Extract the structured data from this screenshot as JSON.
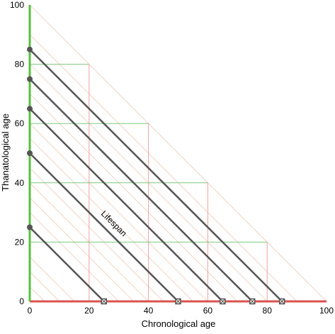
{
  "chart_data": {
    "type": "line",
    "title": "",
    "xlabel": "Chronological age",
    "ylabel": "Thanatological age",
    "xlim": [
      0,
      100
    ],
    "ylim": [
      0,
      100
    ],
    "x_ticks": [
      "0",
      "20",
      "40",
      "60",
      "80",
      "100"
    ],
    "y_ticks": [
      "0",
      "20",
      "40",
      "60",
      "80",
      "100"
    ],
    "grid": false,
    "annotation": "Lifespan",
    "lifespans": [
      25,
      50,
      65,
      75,
      85
    ],
    "series": [
      {
        "points": [
          {
            "x": 0,
            "y": 25
          },
          {
            "x": 25,
            "y": 0
          }
        ]
      },
      {
        "points": [
          {
            "x": 0,
            "y": 50
          },
          {
            "x": 50,
            "y": 0
          }
        ]
      },
      {
        "points": [
          {
            "x": 0,
            "y": 65
          },
          {
            "x": 65,
            "y": 0
          }
        ]
      },
      {
        "points": [
          {
            "x": 0,
            "y": 75
          },
          {
            "x": 75,
            "y": 0
          }
        ]
      },
      {
        "points": [
          {
            "x": 0,
            "y": 85
          },
          {
            "x": 85,
            "y": 0
          }
        ]
      }
    ],
    "reference_points": [
      {
        "x": 20,
        "y": 80
      },
      {
        "x": 40,
        "y": 60
      },
      {
        "x": 60,
        "y": 40
      },
      {
        "x": 80,
        "y": 20
      }
    ],
    "guide_diagonals": [
      5,
      10,
      15,
      30,
      35,
      40,
      45,
      55,
      60,
      70,
      80,
      90,
      100
    ],
    "colors": {
      "lifespan_line": "#555555",
      "lifespan_marker": "#555555",
      "y_axis": "#55c13b",
      "x_axis": "#d9534f",
      "reference_horizontal": "#7ec77e",
      "reference_vertical": "#f0a0a0",
      "guide": "#f0c9b5"
    }
  }
}
